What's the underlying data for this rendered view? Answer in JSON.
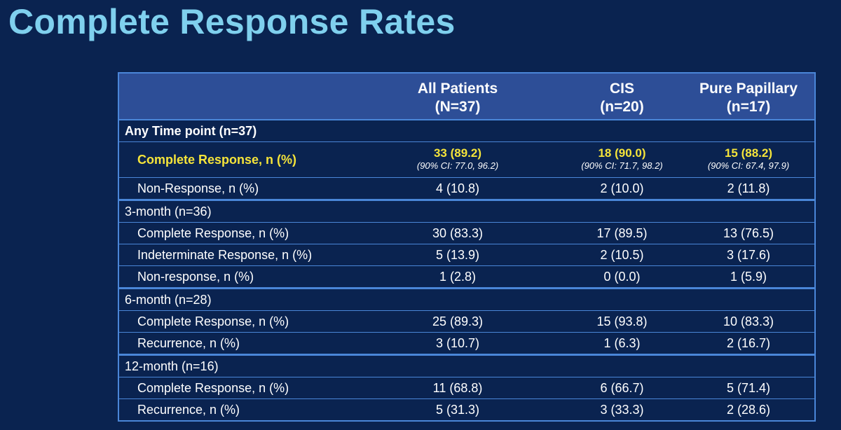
{
  "title": "Complete Response Rates",
  "table": {
    "headers": [
      "",
      "All Patients\n(N=37)",
      "CIS\n(n=20)",
      "Pure Papillary\n(n=17)"
    ],
    "sections": [
      {
        "label": "Any Time point (n=37)",
        "highlight": {
          "label": "Complete Response, n (%)",
          "values": [
            "33 (89.2)",
            "18 (90.0)",
            "15 (88.2)"
          ],
          "ci": [
            "(90% CI: 77.0, 96.2)",
            "(90% CI: 71.7, 98.2)",
            "(90% CI: 67.4, 97.9)"
          ]
        },
        "rows": [
          {
            "label": "Non-Response, n (%)",
            "values": [
              "4 (10.8)",
              "2 (10.0)",
              "2 (11.8)"
            ]
          }
        ]
      },
      {
        "label": "3-month (n=36)",
        "rows": [
          {
            "label": "Complete Response, n (%)",
            "values": [
              "30 (83.3)",
              "17 (89.5)",
              "13 (76.5)"
            ]
          },
          {
            "label": "Indeterminate Response, n (%)",
            "values": [
              "5 (13.9)",
              "2 (10.5)",
              "3 (17.6)"
            ]
          },
          {
            "label": "Non-response, n (%)",
            "values": [
              "1 (2.8)",
              "0 (0.0)",
              "1 (5.9)"
            ]
          }
        ]
      },
      {
        "label": "6-month (n=28)",
        "rows": [
          {
            "label": "Complete Response, n (%)",
            "values": [
              "25 (89.3)",
              "15 (93.8)",
              "10 (83.3)"
            ]
          },
          {
            "label": "Recurrence, n (%)",
            "values": [
              "3 (10.7)",
              "1 (6.3)",
              "2 (16.7)"
            ]
          }
        ]
      },
      {
        "label": "12-month (n=16)",
        "rows": [
          {
            "label": "Complete Response, n (%)",
            "values": [
              "11 (68.8)",
              "6 (66.7)",
              "5 (71.4)"
            ]
          },
          {
            "label": "Recurrence, n (%)",
            "values": [
              "5 (31.3)",
              "3 (33.3)",
              "2 (28.6)"
            ]
          }
        ]
      }
    ]
  }
}
